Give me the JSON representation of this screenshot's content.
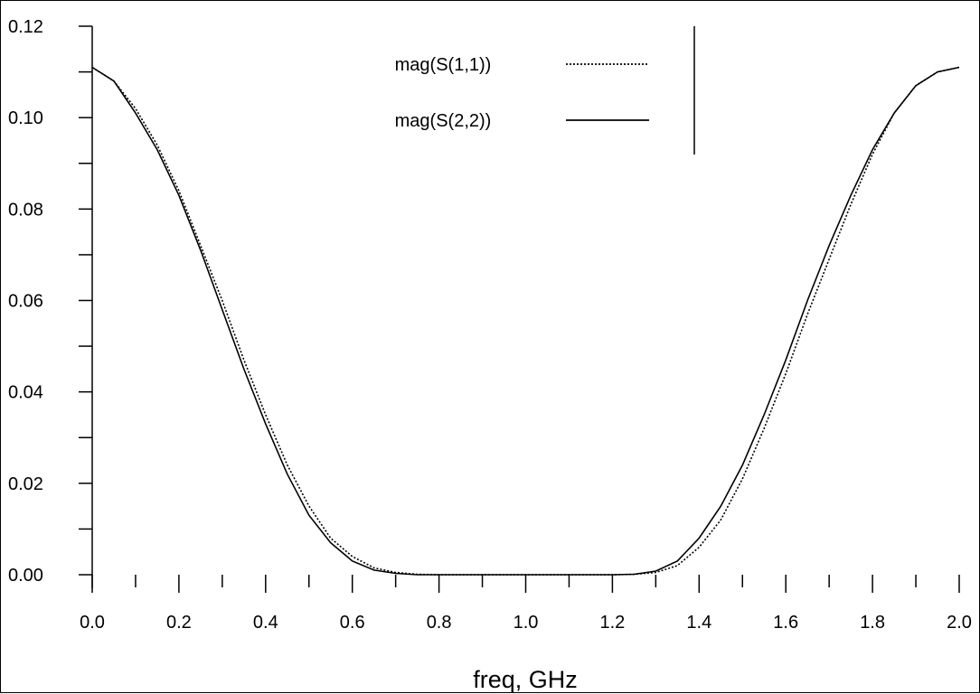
{
  "chart_data": {
    "type": "line",
    "title": "",
    "xlabel": "freq, GHz",
    "ylabel": "",
    "xlim": [
      0.0,
      2.0
    ],
    "ylim": [
      0.0,
      0.12
    ],
    "x_ticks": [
      "0.0",
      "0.2",
      "0.4",
      "0.6",
      "0.8",
      "1.0",
      "1.2",
      "1.4",
      "1.6",
      "1.8",
      "2.0"
    ],
    "y_ticks": [
      "0.00",
      "0.02",
      "0.04",
      "0.06",
      "0.08",
      "0.10",
      "0.12"
    ],
    "grid": false,
    "legend_position": "top-center",
    "series": [
      {
        "name": "mag(S(1,1))",
        "style": "dotted",
        "color": "#000000",
        "x": [
          0.0,
          0.05,
          0.1,
          0.15,
          0.2,
          0.25,
          0.3,
          0.35,
          0.4,
          0.45,
          0.5,
          0.55,
          0.6,
          0.65,
          0.7,
          0.75,
          0.8,
          0.9,
          1.0,
          1.1,
          1.2,
          1.25,
          1.3,
          1.35,
          1.4,
          1.45,
          1.5,
          1.55,
          1.6,
          1.65,
          1.7,
          1.75,
          1.8,
          1.85,
          1.9,
          1.95,
          2.0
        ],
        "values": [
          0.111,
          0.108,
          0.102,
          0.094,
          0.084,
          0.072,
          0.06,
          0.047,
          0.035,
          0.024,
          0.015,
          0.008,
          0.004,
          0.0015,
          0.0005,
          0.0001,
          0.0,
          0.0,
          0.0,
          0.0,
          0.0,
          0.0001,
          0.0005,
          0.002,
          0.006,
          0.012,
          0.021,
          0.032,
          0.044,
          0.057,
          0.069,
          0.081,
          0.092,
          0.101,
          0.107,
          0.11,
          0.111
        ]
      },
      {
        "name": "mag(S(2,2))",
        "style": "solid",
        "color": "#000000",
        "x": [
          0.0,
          0.05,
          0.1,
          0.15,
          0.2,
          0.25,
          0.3,
          0.35,
          0.4,
          0.45,
          0.5,
          0.55,
          0.6,
          0.65,
          0.7,
          0.75,
          0.8,
          0.9,
          1.0,
          1.1,
          1.2,
          1.25,
          1.3,
          1.35,
          1.4,
          1.45,
          1.5,
          1.55,
          1.6,
          1.65,
          1.7,
          1.75,
          1.8,
          1.85,
          1.9,
          1.95,
          2.0
        ],
        "values": [
          0.111,
          0.108,
          0.101,
          0.093,
          0.083,
          0.071,
          0.058,
          0.045,
          0.033,
          0.022,
          0.013,
          0.007,
          0.003,
          0.001,
          0.0003,
          0.0,
          0.0,
          0.0,
          0.0,
          0.0,
          0.0,
          0.0001,
          0.0008,
          0.003,
          0.008,
          0.015,
          0.024,
          0.035,
          0.047,
          0.06,
          0.072,
          0.083,
          0.093,
          0.101,
          0.107,
          0.11,
          0.111
        ]
      }
    ]
  }
}
